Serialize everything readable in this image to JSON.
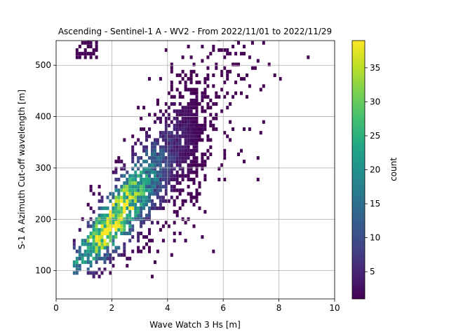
{
  "chart_data": {
    "type": "heatmap",
    "title": "Ascending - Sentinel-1 A - WV2 - From 2022/11/01 to 2022/11/29",
    "xlabel": "Wave Watch 3 Hs [m]",
    "ylabel": "S-1 A Azimuth Cut-off wavelength [m]",
    "xlim": [
      0,
      10
    ],
    "ylim": [
      45,
      548
    ],
    "xticks": [
      0,
      2,
      4,
      6,
      8,
      10
    ],
    "yticks": [
      100,
      200,
      300,
      400,
      500
    ],
    "grid": true,
    "colorbar": {
      "label": "count",
      "range": [
        1,
        39
      ],
      "ticks": [
        5,
        10,
        15,
        20,
        25,
        30,
        35
      ],
      "colormap": "viridis"
    },
    "distribution": {
      "x_range": [
        0.6,
        9.7
      ],
      "y_range": [
        85,
        548
      ],
      "peak_count": 39,
      "peak_location": {
        "x": 1.9,
        "y": 190
      },
      "trend_note": "cut-off wavelength increases with Hs"
    }
  }
}
